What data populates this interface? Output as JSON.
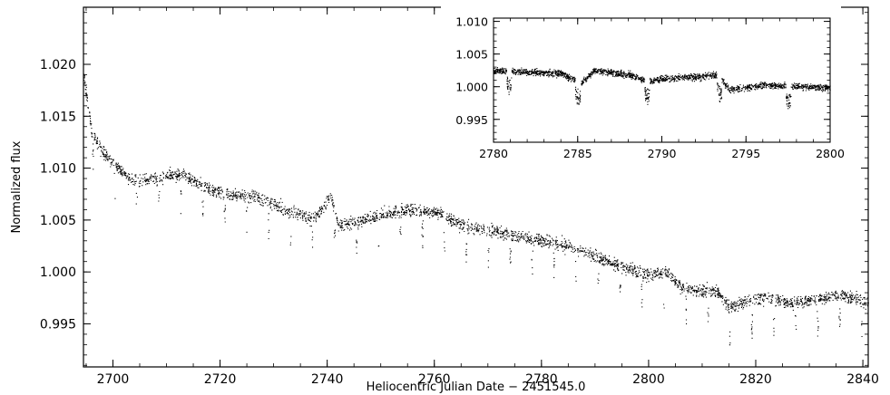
{
  "chart_data": [
    {
      "type": "scatter",
      "role": "main",
      "xlabel": "Heliocentric Julian Date − 2451545.0",
      "ylabel": "Normalized flux",
      "xlim": [
        2694.5,
        2841
      ],
      "ylim": [
        0.99085,
        1.0255
      ],
      "xticks": [
        2700,
        2720,
        2740,
        2760,
        2780,
        2800,
        2820,
        2840
      ],
      "yticks": [
        0.995,
        1.0,
        1.005,
        1.01,
        1.015,
        1.02
      ],
      "xtick_labels": [
        "2700",
        "2720",
        "2740",
        "2760",
        "2780",
        "2800",
        "2820",
        "2840"
      ],
      "ytick_labels": [
        "0.995",
        "1.000",
        "1.005",
        "1.010",
        "1.015",
        "1.020"
      ],
      "baseline_trend": {
        "x": [
          2694.6,
          2696,
          2698,
          2700,
          2703,
          2706,
          2710,
          2713,
          2716,
          2720,
          2724,
          2728,
          2732,
          2735,
          2737,
          2739,
          2740.5,
          2742,
          2745,
          2750,
          2755,
          2760,
          2765,
          2770,
          2775,
          2780,
          2785,
          2790,
          2795,
          2800,
          2803,
          2806,
          2810,
          2813,
          2815,
          2818,
          2822,
          2826,
          2830,
          2835,
          2840,
          2841
        ],
        "y": [
          1.0185,
          1.0135,
          1.0115,
          1.0105,
          1.009,
          1.0088,
          1.0092,
          1.0094,
          1.0085,
          1.0075,
          1.0074,
          1.007,
          1.006,
          1.0055,
          1.005,
          1.006,
          1.0075,
          1.0045,
          1.0048,
          1.0055,
          1.006,
          1.0058,
          1.0045,
          1.004,
          1.0035,
          1.003,
          1.0025,
          1.0015,
          1.0005,
          0.9997,
          1.0,
          0.9985,
          0.9982,
          0.998,
          0.9965,
          0.9972,
          0.9975,
          0.997,
          0.9972,
          0.9978,
          0.9972,
          0.997
        ]
      },
      "scatter_half_width": 0.0006,
      "transit_period_days": 4.1,
      "transit_first_mid": 2696.2,
      "transit_depth": 0.0035,
      "transit_half_duration_days": 0.12,
      "color": "#000000"
    },
    {
      "type": "scatter",
      "role": "inset",
      "xlim": [
        2780,
        2800
      ],
      "ylim": [
        0.9915,
        1.0105
      ],
      "xticks": [
        2780,
        2785,
        2790,
        2795,
        2800
      ],
      "yticks": [
        0.995,
        1.0,
        1.005,
        1.01
      ],
      "xtick_labels": [
        "2780",
        "2785",
        "2790",
        "2795",
        "2800"
      ],
      "ytick_labels": [
        "0.995",
        "1.000",
        "1.005",
        "1.010"
      ],
      "baseline_trend": {
        "x": [
          2780,
          2782,
          2784,
          2785.2,
          2786,
          2788,
          2789.3,
          2790,
          2792,
          2793.3,
          2794,
          2796,
          2798,
          2800
        ],
        "y": [
          1.0025,
          1.0022,
          1.002,
          1.0005,
          1.0025,
          1.0018,
          1.0008,
          1.0012,
          1.0015,
          1.0018,
          0.9995,
          1.0002,
          1.0,
          0.9998
        ]
      },
      "scatter_half_width": 0.0005,
      "transit_mids": [
        2780.9,
        2785.0,
        2789.1,
        2793.4,
        2797.5
      ],
      "transit_depth": 0.0035,
      "transit_half_duration_days": 0.15,
      "color": "#000000"
    }
  ]
}
